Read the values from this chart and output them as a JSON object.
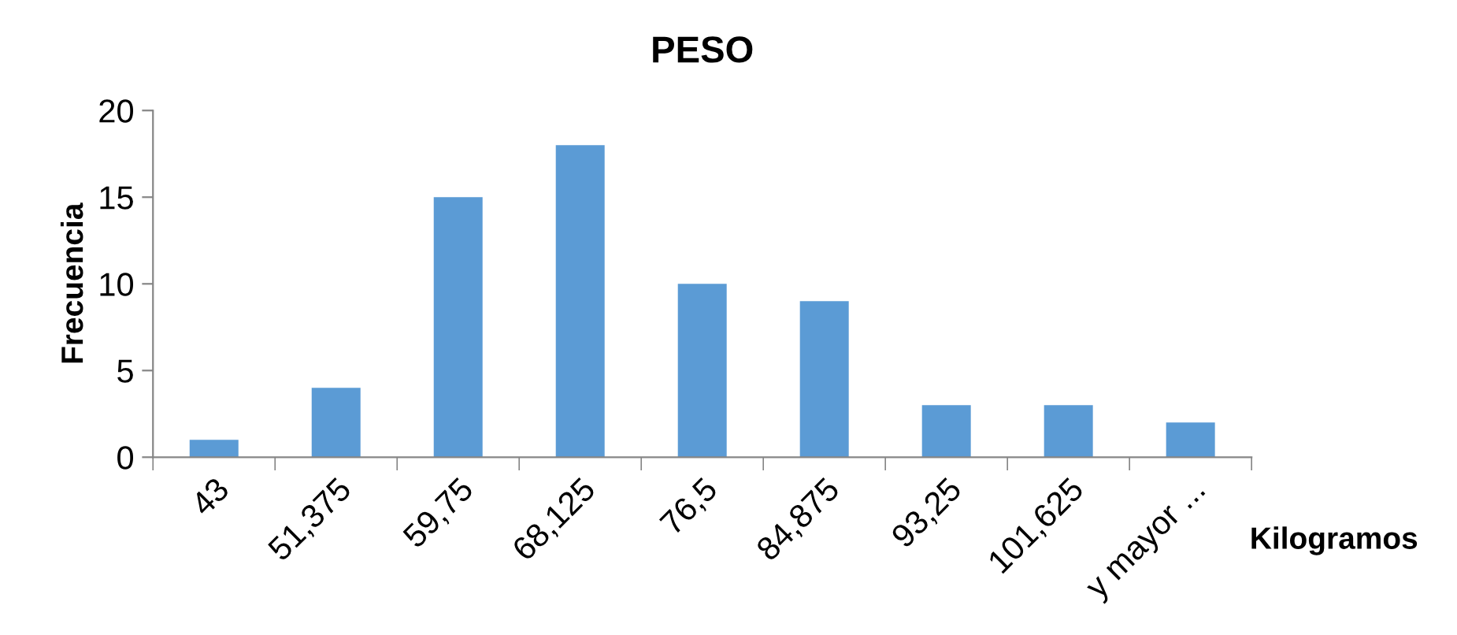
{
  "chart_data": {
    "type": "bar",
    "title": "PESO",
    "xlabel": "Kilogramos",
    "ylabel": "Frecuencia",
    "categories": [
      "43",
      "51,375",
      "59,75",
      "68,125",
      "76,5",
      "84,875",
      "93,25",
      "101,625",
      "y mayor ..."
    ],
    "series": [
      {
        "color": "#5b9bd5",
        "values": [
          1,
          4,
          15,
          18,
          10,
          9,
          3,
          3,
          2
        ]
      }
    ],
    "ylim": [
      0,
      20
    ],
    "yticks": [
      0,
      5,
      10,
      15,
      20
    ],
    "grid": false,
    "legend": false
  }
}
